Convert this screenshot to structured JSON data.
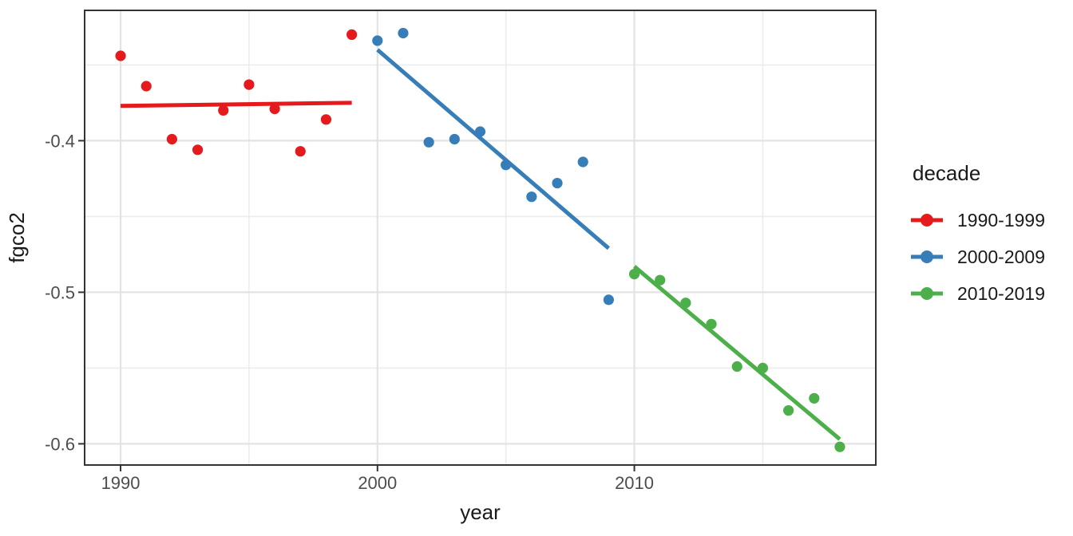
{
  "figure": {
    "background": "#ffffff",
    "panel_background": "#ffffff",
    "panel_border_color": "#333333",
    "grid_major_color": "#e3e3e3",
    "grid_minor_color": "#ececec",
    "tick_mark_color": "#333333",
    "tick_label_color": "#4d4d4d",
    "axis_title_color": "#1a1a1a",
    "point_radius": 6.6,
    "line_width": 5
  },
  "chart_data": {
    "type": "scatter",
    "title": "",
    "xlabel": "year",
    "ylabel": "fgco2",
    "xlim": [
      1988.6,
      2019.4
    ],
    "ylim": [
      -0.614,
      -0.314
    ],
    "grid": true,
    "x_ticks": [
      {
        "value": 1990,
        "label": "1990"
      },
      {
        "value": 2000,
        "label": "2000"
      },
      {
        "value": 2010,
        "label": "2010"
      }
    ],
    "x_minor": [
      1995,
      2005,
      2015
    ],
    "y_ticks": [
      {
        "value": -0.4,
        "label": "-0.4"
      },
      {
        "value": -0.5,
        "label": "-0.5"
      },
      {
        "value": -0.6,
        "label": "-0.6"
      }
    ],
    "y_minor": [
      -0.35,
      -0.45,
      -0.55
    ],
    "legend": {
      "title": "decade",
      "position": "right"
    },
    "series": [
      {
        "name": "1990-1999",
        "color": "#E41A1C",
        "x": [
          1990,
          1991,
          1992,
          1993,
          1994,
          1995,
          1996,
          1997,
          1998,
          1999
        ],
        "y": [
          -0.344,
          -0.364,
          -0.399,
          -0.406,
          -0.38,
          -0.363,
          -0.379,
          -0.407,
          -0.386,
          -0.33
        ],
        "trend": {
          "x1": 1990,
          "y1": -0.377,
          "x2": 1999,
          "y2": -0.375
        }
      },
      {
        "name": "2000-2009",
        "color": "#377EB8",
        "x": [
          2000,
          2001,
          2002,
          2003,
          2004,
          2005,
          2006,
          2007,
          2008,
          2009
        ],
        "y": [
          -0.334,
          -0.329,
          -0.401,
          -0.399,
          -0.394,
          -0.416,
          -0.437,
          -0.428,
          -0.414,
          -0.505
        ],
        "trend": {
          "x1": 2000,
          "y1": -0.34,
          "x2": 2009,
          "y2": -0.471
        }
      },
      {
        "name": "2010-2019",
        "color": "#4DAF4A",
        "x": [
          2010,
          2011,
          2012,
          2013,
          2014,
          2015,
          2016,
          2017,
          2018
        ],
        "y": [
          -0.488,
          -0.492,
          -0.507,
          -0.521,
          -0.549,
          -0.55,
          -0.578,
          -0.57,
          -0.602
        ],
        "trend": {
          "x1": 2010,
          "y1": -0.483,
          "x2": 2018,
          "y2": -0.597
        }
      }
    ]
  }
}
